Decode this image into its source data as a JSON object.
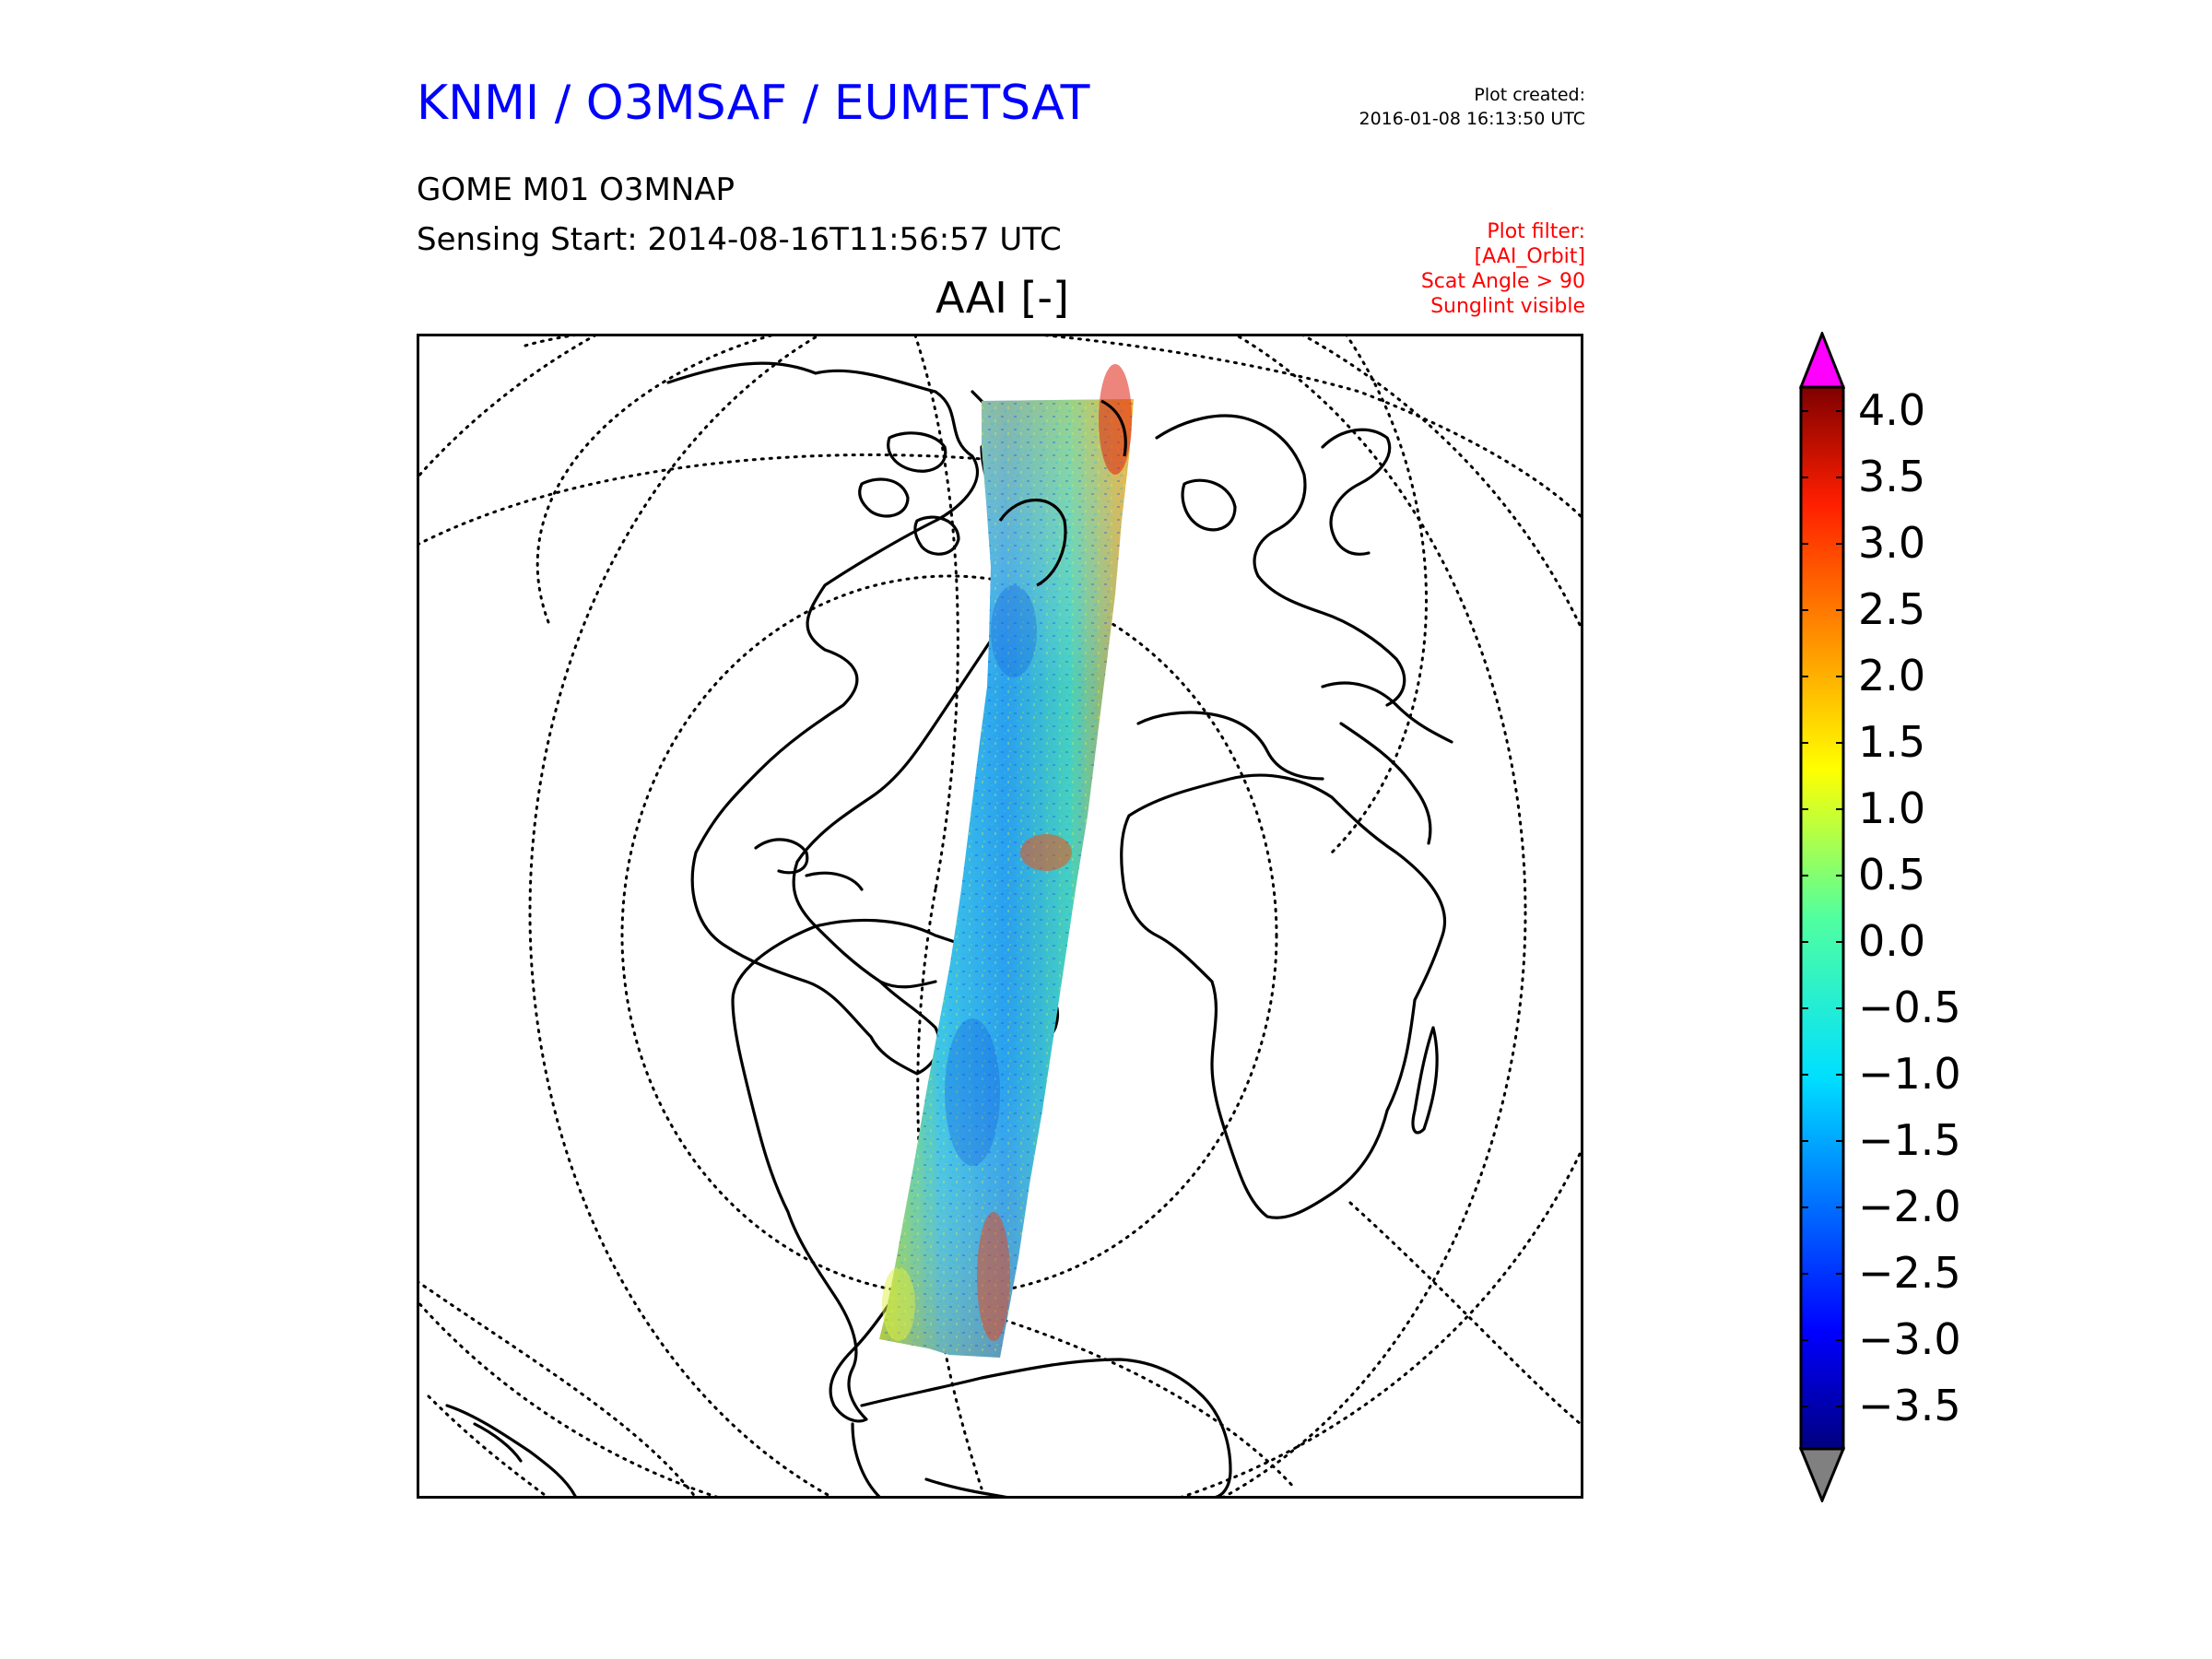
{
  "header": {
    "title": "KNMI / O3MSAF / EUMETSAT",
    "created_label": "Plot created:",
    "created_time": "2016-01-08 16:13:50 UTC"
  },
  "product": {
    "name": "GOME M01 O3MNAP",
    "sensing_start": "Sensing Start: 2014-08-16T11:56:57 UTC"
  },
  "filter": {
    "label": "Plot filter:",
    "lines": [
      "[AAI_Orbit]",
      "Scat Angle > 90",
      "Sunglint visible"
    ],
    "color": "#ff0000"
  },
  "map": {
    "variable_title": "AAI [-]",
    "projection": "orthographic",
    "graticule": "dotted",
    "coastlines": "black",
    "swath": "GOME orbit swath over Atlantic from Arctic to Antarctica"
  },
  "colorbar": {
    "min": -3.5,
    "max": 4.0,
    "ticks": [
      "4.0",
      "3.5",
      "3.0",
      "2.5",
      "2.0",
      "1.5",
      "1.0",
      "0.5",
      "0.0",
      "−0.5",
      "−1.0",
      "−1.5",
      "−2.0",
      "−2.5",
      "−3.0",
      "−3.5"
    ],
    "colormap": "jet",
    "over_color": "#ff00ff",
    "under_color": "#808080"
  }
}
